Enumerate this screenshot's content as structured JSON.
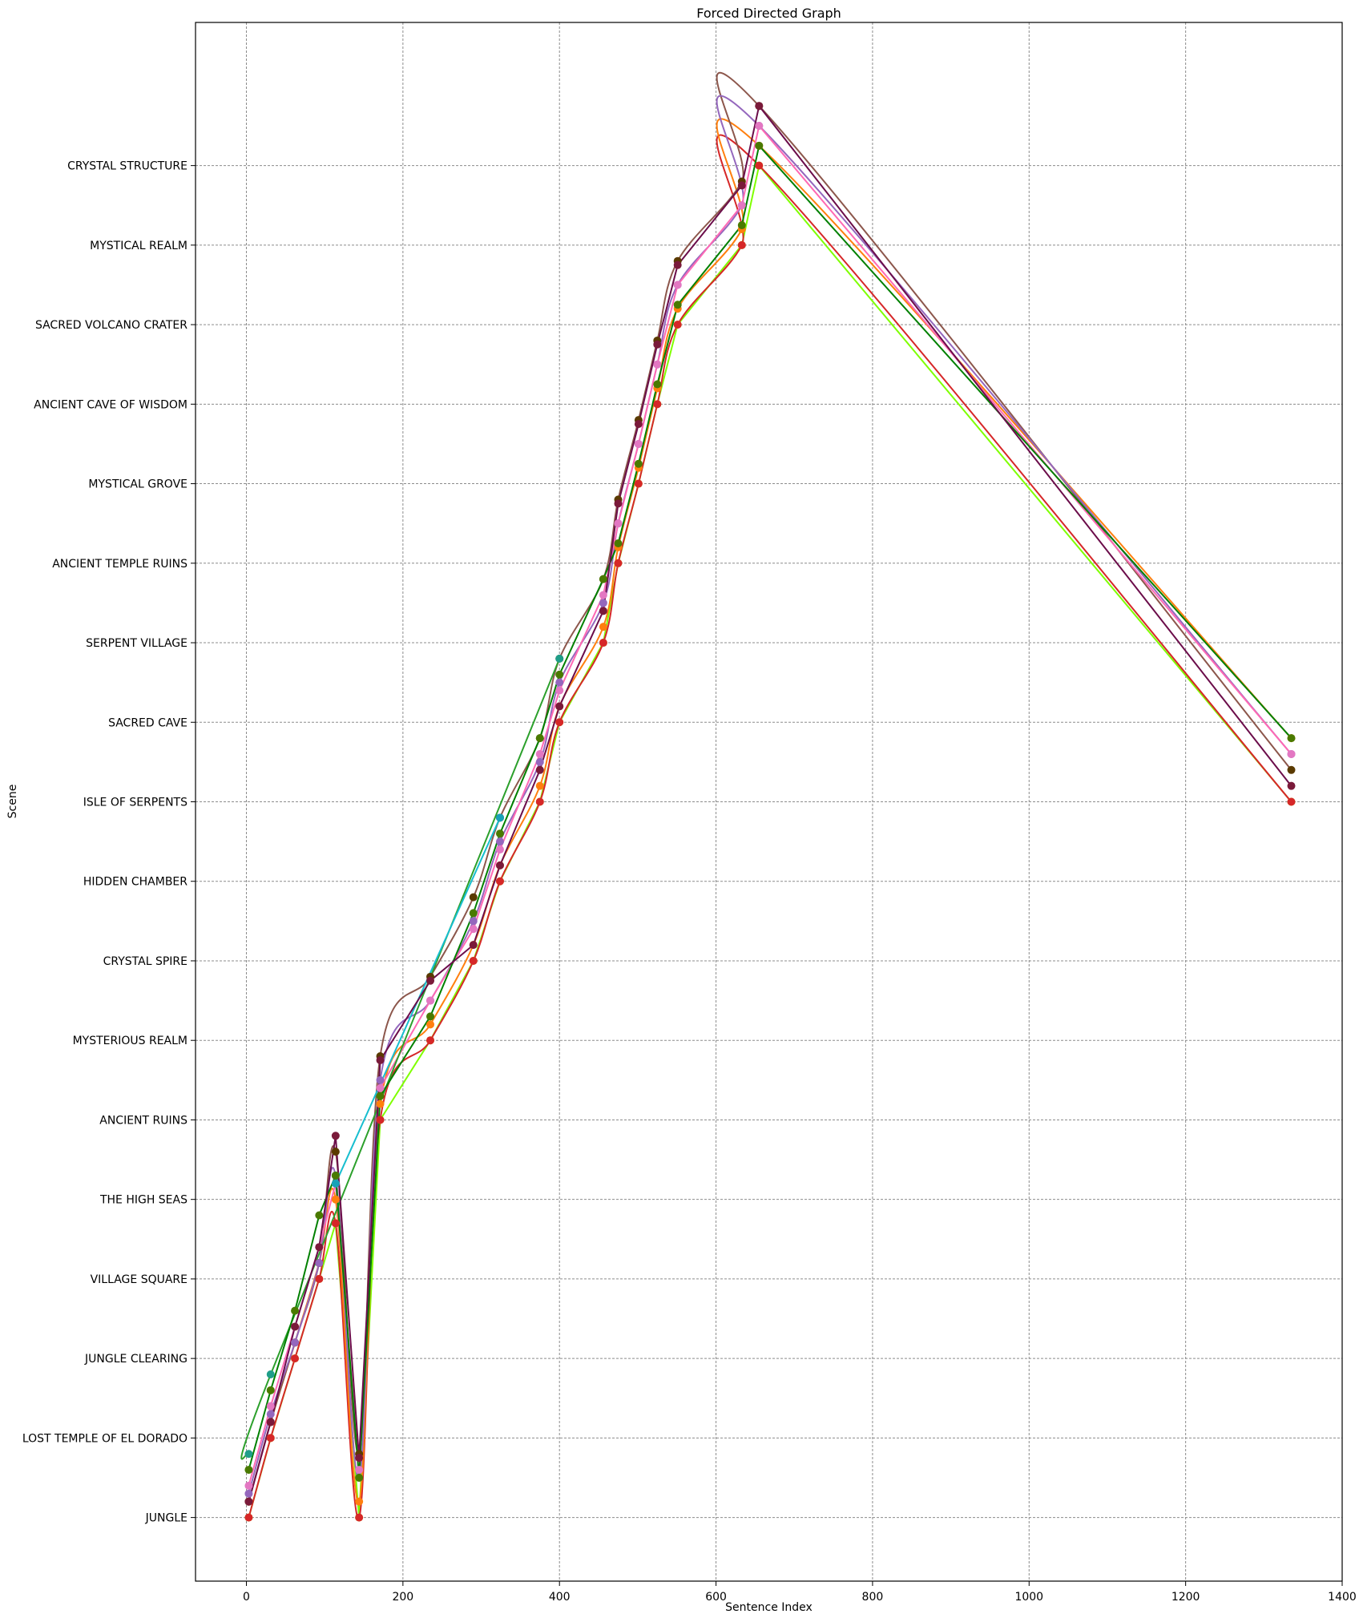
{
  "chart_data": {
    "type": "line",
    "title": "Forced Directed Graph",
    "xlabel": "Sentence Index",
    "ylabel": "Scene",
    "xlim": [
      -65,
      1400
    ],
    "ylim": [
      -0.8,
      18.8
    ],
    "grid": true,
    "x_ticks": [
      0,
      200,
      400,
      600,
      800,
      1000,
      1200,
      1400
    ],
    "categories": [
      "JUNGLE",
      "LOST TEMPLE OF EL DORADO",
      "JUNGLE CLEARING",
      "VILLAGE SQUARE",
      "THE HIGH SEAS",
      "ANCIENT RUINS",
      "MYSTERIOUS REALM",
      "CRYSTAL SPIRE",
      "HIDDEN CHAMBER",
      "ISLE OF SERPENTS",
      "SACRED CAVE",
      "SERPENT VILLAGE",
      "ANCIENT TEMPLE RUINS",
      "MYSTICAL GROVE",
      "ANCIENT CAVE OF WISDOM",
      "SACRED VOLCANO CRATER",
      "MYSTICAL REALM",
      "CRYSTAL STRUCTURE"
    ],
    "series": [
      {
        "color": "#7fff00",
        "marker": "#b0ef00",
        "curve": "linear",
        "points": [
          [
            3,
            0
          ],
          [
            31,
            1
          ],
          [
            62,
            2
          ],
          [
            93,
            3
          ],
          [
            114,
            3.7
          ],
          [
            144,
            0
          ],
          [
            171,
            5
          ],
          [
            235,
            6
          ],
          [
            290,
            7
          ],
          [
            324,
            8
          ],
          [
            375,
            9
          ],
          [
            400,
            10
          ],
          [
            456,
            11
          ],
          [
            475,
            12
          ],
          [
            501,
            13
          ],
          [
            525,
            14
          ],
          [
            551,
            15
          ],
          [
            633,
            16
          ],
          [
            655,
            17
          ],
          [
            1335,
            9
          ]
        ]
      },
      {
        "color": "#d62728",
        "marker": "#d62728",
        "curve": "smooth",
        "points": [
          [
            3,
            0
          ],
          [
            31,
            1
          ],
          [
            62,
            2
          ],
          [
            93,
            3
          ],
          [
            114,
            3.7
          ],
          [
            144,
            0
          ],
          [
            171,
            5
          ],
          [
            235,
            6
          ],
          [
            290,
            7
          ],
          [
            324,
            8
          ],
          [
            375,
            9
          ],
          [
            400,
            10
          ],
          [
            456,
            11
          ],
          [
            475,
            12
          ],
          [
            501,
            13
          ],
          [
            525,
            14
          ],
          [
            551,
            15
          ],
          [
            633,
            16
          ],
          [
            655,
            17
          ],
          [
            1335,
            9
          ]
        ]
      },
      {
        "color": "#ff7f0e",
        "marker": "#ff7f0e",
        "curve": "smooth",
        "points": [
          [
            3,
            0.2
          ],
          [
            31,
            1.2
          ],
          [
            62,
            2.2
          ],
          [
            93,
            3.2
          ],
          [
            114,
            4
          ],
          [
            144,
            0.2
          ],
          [
            171,
            5.2
          ],
          [
            235,
            6.2
          ],
          [
            290,
            7.2
          ],
          [
            324,
            8.2
          ],
          [
            375,
            9.2
          ],
          [
            400,
            10.2
          ],
          [
            456,
            11.2
          ],
          [
            475,
            12.2
          ],
          [
            501,
            13.2
          ],
          [
            525,
            14.2
          ],
          [
            551,
            15.2
          ],
          [
            633,
            16.2
          ],
          [
            655,
            17.25
          ],
          [
            1335,
            9.8
          ]
        ]
      },
      {
        "color": "#8c564b",
        "marker": "#5a3a00",
        "curve": "smooth",
        "points": [
          [
            3,
            0.2
          ],
          [
            31,
            1.2
          ],
          [
            62,
            2.2
          ],
          [
            93,
            3.2
          ],
          [
            114,
            4.6
          ],
          [
            144,
            0.8
          ],
          [
            171,
            5.8
          ],
          [
            235,
            6.8
          ],
          [
            290,
            7.8
          ],
          [
            324,
            8.8
          ],
          [
            375,
            9.8
          ],
          [
            400,
            10.8
          ],
          [
            456,
            11.8
          ],
          [
            475,
            12.8
          ],
          [
            501,
            13.8
          ],
          [
            525,
            14.8
          ],
          [
            551,
            15.8
          ],
          [
            633,
            16.8
          ],
          [
            655,
            17.75
          ],
          [
            1335,
            9.4
          ]
        ]
      },
      {
        "color": "#9467bd",
        "marker": "#9467bd",
        "curve": "smooth",
        "points": [
          [
            3,
            0.3
          ],
          [
            31,
            1.3
          ],
          [
            62,
            2.2
          ],
          [
            93,
            3.2
          ],
          [
            114,
            4.3
          ],
          [
            144,
            0.5
          ],
          [
            171,
            5.5
          ],
          [
            235,
            6.5
          ],
          [
            290,
            7.5
          ],
          [
            324,
            8.5
          ],
          [
            375,
            9.5
          ],
          [
            400,
            10.5
          ],
          [
            456,
            11.5
          ],
          [
            475,
            12.5
          ],
          [
            501,
            13.5
          ],
          [
            525,
            14.5
          ],
          [
            551,
            15.5
          ],
          [
            633,
            16.5
          ],
          [
            655,
            17.5
          ],
          [
            1335,
            9.6
          ]
        ]
      },
      {
        "color": "#ff69b4",
        "marker": "#e377c2",
        "curve": "linear",
        "points": [
          [
            3,
            0.4
          ],
          [
            31,
            1.4
          ],
          [
            62,
            2.4
          ],
          [
            93,
            3.4
          ],
          [
            114,
            4.2
          ],
          [
            144,
            0.6
          ],
          [
            171,
            5.4
          ],
          [
            235,
            6.5
          ],
          [
            290,
            7.4
          ],
          [
            324,
            8.4
          ],
          [
            375,
            9.6
          ],
          [
            400,
            10.4
          ],
          [
            456,
            11.6
          ],
          [
            475,
            12.5
          ],
          [
            501,
            13.5
          ],
          [
            525,
            14.5
          ],
          [
            551,
            15.5
          ],
          [
            633,
            16.5
          ],
          [
            655,
            17.5
          ],
          [
            1335,
            9.6
          ]
        ]
      },
      {
        "color": "#2ca02c",
        "marker": "#1f9e89",
        "curve": "smooth",
        "points": [
          [
            3,
            0.8
          ],
          [
            31,
            1.8
          ],
          [
            400,
            10.8
          ]
        ]
      },
      {
        "color": "#17becf",
        "marker": "#17a2b8",
        "curve": "linear",
        "points": [
          [
            114,
            4.2
          ],
          [
            324,
            8.8
          ]
        ]
      },
      {
        "color": "#008000",
        "marker": "#4a7a00",
        "curve": "linear",
        "points": [
          [
            3,
            0.6
          ],
          [
            31,
            1.6
          ],
          [
            62,
            2.6
          ],
          [
            93,
            3.8
          ],
          [
            114,
            4.3
          ],
          [
            144,
            0.5
          ],
          [
            171,
            5.3
          ],
          [
            235,
            6.3
          ],
          [
            290,
            7.6
          ],
          [
            324,
            8.6
          ],
          [
            375,
            9.8
          ],
          [
            400,
            10.6
          ],
          [
            456,
            11.8
          ],
          [
            475,
            12.25
          ],
          [
            501,
            13.25
          ],
          [
            525,
            14.25
          ],
          [
            551,
            15.25
          ],
          [
            633,
            16.25
          ],
          [
            655,
            17.25
          ],
          [
            1335,
            9.8
          ]
        ]
      },
      {
        "color": "#6b0d4a",
        "marker": "#7a1a3a",
        "curve": "linear",
        "points": [
          [
            3,
            0.2
          ],
          [
            31,
            1.2
          ],
          [
            62,
            2.4
          ],
          [
            93,
            3.4
          ],
          [
            114,
            4.8
          ],
          [
            144,
            0.75
          ],
          [
            171,
            5.75
          ],
          [
            235,
            6.75
          ],
          [
            290,
            7.2
          ],
          [
            324,
            8.2
          ],
          [
            375,
            9.4
          ],
          [
            400,
            10.2
          ],
          [
            456,
            11.4
          ],
          [
            475,
            12.75
          ],
          [
            501,
            13.75
          ],
          [
            525,
            14.75
          ],
          [
            551,
            15.75
          ],
          [
            633,
            16.75
          ],
          [
            655,
            17.75
          ],
          [
            1335,
            9.2
          ]
        ]
      }
    ]
  }
}
